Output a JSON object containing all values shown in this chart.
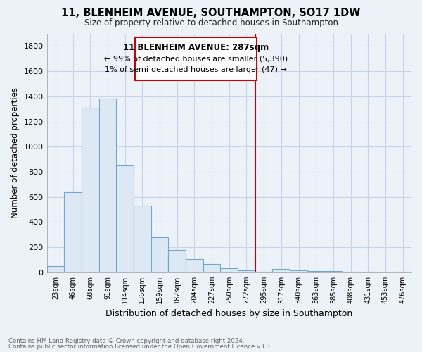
{
  "title": "11, BLENHEIM AVENUE, SOUTHAMPTON, SO17 1DW",
  "subtitle": "Size of property relative to detached houses in Southampton",
  "xlabel": "Distribution of detached houses by size in Southampton",
  "ylabel": "Number of detached properties",
  "footnote1": "Contains HM Land Registry data © Crown copyright and database right 2024.",
  "footnote2": "Contains public sector information licensed under the Open Government Licence v3.0.",
  "annotation_line1": "11 BLENHEIM AVENUE: 287sqm",
  "annotation_line2": "← 99% of detached houses are smaller (5,390)",
  "annotation_line3": "1% of semi-detached houses are larger (47) →",
  "categories": [
    "23sqm",
    "46sqm",
    "68sqm",
    "91sqm",
    "114sqm",
    "136sqm",
    "159sqm",
    "182sqm",
    "204sqm",
    "227sqm",
    "250sqm",
    "272sqm",
    "295sqm",
    "317sqm",
    "340sqm",
    "363sqm",
    "385sqm",
    "408sqm",
    "431sqm",
    "453sqm",
    "476sqm"
  ],
  "values": [
    50,
    640,
    1310,
    1380,
    850,
    530,
    280,
    180,
    105,
    65,
    35,
    15,
    5,
    25,
    15,
    8,
    8,
    3,
    2,
    1,
    5
  ],
  "bar_color": "#dce9f5",
  "bar_edge_color": "#6fa8c8",
  "background_color": "#edf2f9",
  "grid_color": "#c8d4e8",
  "annotation_box_color": "#ffffff",
  "annotation_box_edge": "#cc0000",
  "property_line_color": "#cc0000",
  "prop_line_index": 12,
  "ylim": [
    0,
    1900
  ],
  "yticks": [
    0,
    200,
    400,
    600,
    800,
    1000,
    1200,
    1400,
    1600,
    1800
  ]
}
